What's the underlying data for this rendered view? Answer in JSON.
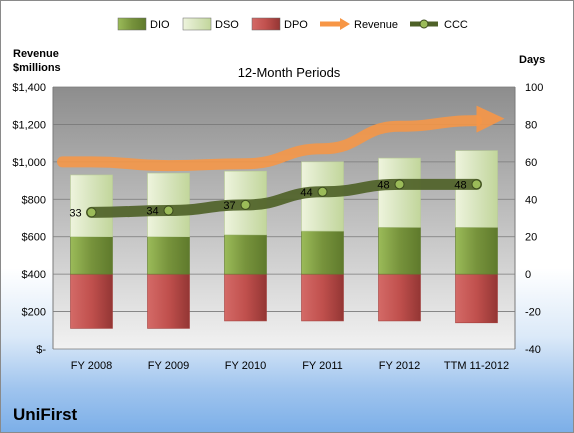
{
  "company": "UniFirst",
  "chart_data": {
    "type": "bar",
    "title": "12-Month Periods",
    "ylabel_left": "Revenue\n$millions",
    "ylabel_right": "Days",
    "categories": [
      "FY 2008",
      "FY 2009",
      "FY 2010",
      "FY 2011",
      "FY 2012",
      "TTM 11-2012"
    ],
    "left_axis": {
      "ticks": [
        "$-",
        "$200",
        "$400",
        "$600",
        "$800",
        "$1,000",
        "$1,200",
        "$1,400"
      ],
      "ylim": [
        0,
        1400
      ]
    },
    "right_axis": {
      "ticks": [
        "-40",
        "-20",
        "0",
        "20",
        "40",
        "60",
        "80",
        "100"
      ],
      "ylim": [
        -40,
        100
      ]
    },
    "grid": true,
    "legend_position": "top",
    "series": [
      {
        "name": "DIO",
        "kind": "stacked-bar",
        "axis": "right",
        "values": [
          20,
          20,
          21,
          23,
          25,
          25
        ],
        "color": "#77933c"
      },
      {
        "name": "DSO",
        "kind": "stacked-bar",
        "axis": "right",
        "values": [
          33,
          34,
          34,
          37,
          37,
          41
        ],
        "color": "#d7e4bd"
      },
      {
        "name": "DPO",
        "kind": "bar-below-zero",
        "axis": "right",
        "values": [
          -29,
          -29,
          -25,
          -25,
          -25,
          -26
        ],
        "color": "#c0504d"
      },
      {
        "name": "Revenue",
        "kind": "arrow-trend",
        "axis": "left",
        "values": [
          1000,
          980,
          990,
          1070,
          1190,
          1220
        ],
        "color": "#f79646"
      },
      {
        "name": "CCC",
        "kind": "line-marker",
        "axis": "right",
        "values": [
          33,
          34,
          37,
          44,
          48,
          48
        ],
        "labels": [
          "33",
          "34",
          "37",
          "44",
          "48",
          "48"
        ],
        "color": "#4f6228"
      }
    ]
  }
}
